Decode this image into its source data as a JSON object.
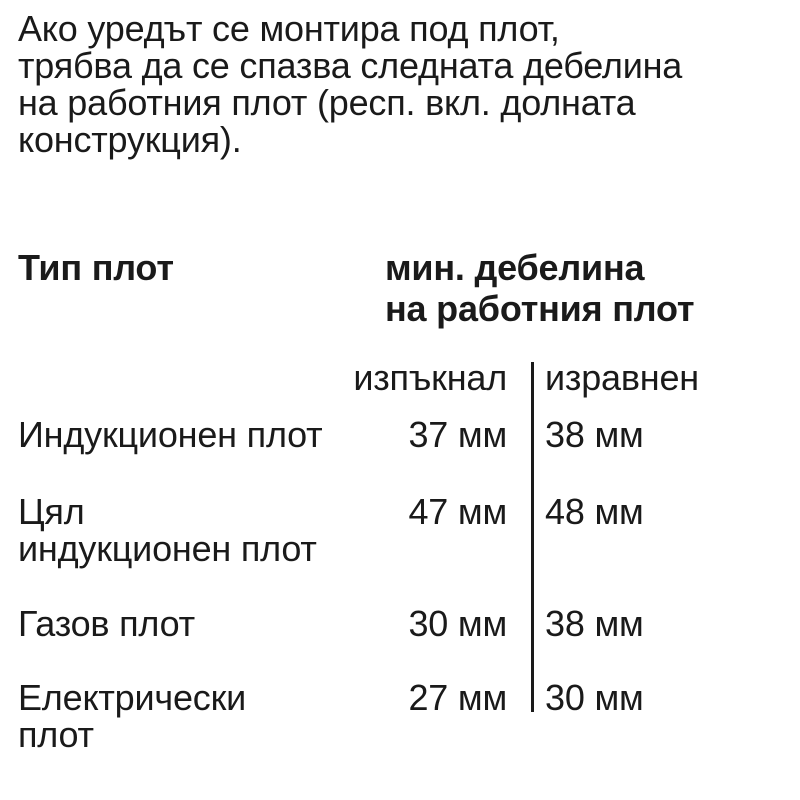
{
  "page": {
    "background_color": "#ffffff",
    "text_color": "#1a1a1a",
    "divider_color": "#1a1a1a"
  },
  "intro": {
    "lines": [
      "Ако уредът се монтира под плот,",
      "трябва да се спазва следната дебелина",
      "на работния плот (респ. вкл. долната",
      "конструкция)."
    ]
  },
  "table": {
    "type_header": "Тип плот",
    "thickness_header_lines": [
      "мин. дебелина",
      "на работния плот"
    ],
    "subheaders": {
      "proud": "изпъкнал",
      "flush": "изравнен"
    },
    "rows": [
      {
        "label_lines": [
          "Индукционен плот"
        ],
        "proud": "37 мм",
        "flush": "38 мм"
      },
      {
        "label_lines": [
          "Цял",
          "индукционен плот"
        ],
        "proud": "47 мм",
        "flush": "48 мм"
      },
      {
        "label_lines": [
          "Газов плот"
        ],
        "proud": "30 мм",
        "flush": "38 мм"
      },
      {
        "label_lines": [
          "Електрически",
          "плот"
        ],
        "proud": "27 мм",
        "flush": "30 мм"
      }
    ]
  }
}
